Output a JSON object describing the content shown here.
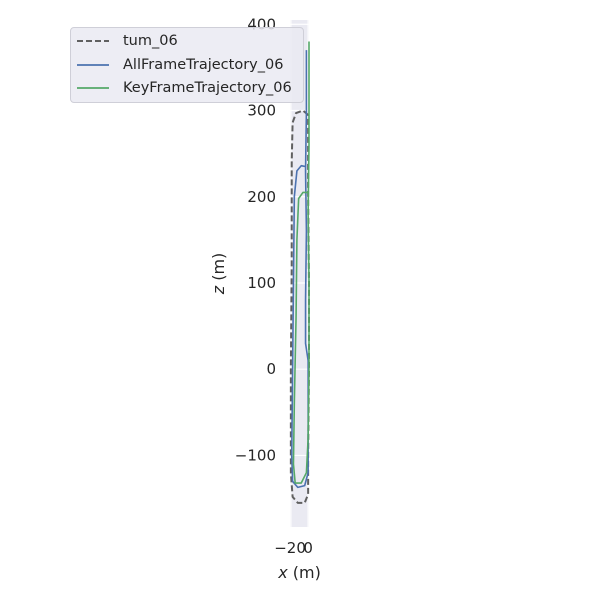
{
  "chart_data": {
    "type": "line",
    "title": "",
    "xlabel_var": "x",
    "xlabel_unit": " (m)",
    "ylabel_var": "z",
    "ylabel_unit": " (m)",
    "xlim": [
      -21,
      1
    ],
    "ylim": [
      -183,
      405
    ],
    "x_ticks": [
      -20,
      0
    ],
    "x_tick_labels": [
      "−20",
      "0"
    ],
    "y_ticks": [
      -100,
      0,
      100,
      200,
      300,
      400
    ],
    "y_tick_labels": [
      "−100",
      "0",
      "100",
      "200",
      "300",
      "400"
    ],
    "grid": true,
    "legend_position": "upper-left",
    "series": [
      {
        "name": "tum_06",
        "color": "#606060",
        "style": "dashed",
        "points": [
          [
            0,
            295
          ],
          [
            -6,
            300
          ],
          [
            -14,
            297
          ],
          [
            -18,
            286
          ],
          [
            -19,
            240
          ],
          [
            -19,
            120
          ],
          [
            -20,
            0
          ],
          [
            -20,
            -120
          ],
          [
            -18,
            -148
          ],
          [
            -12,
            -155
          ],
          [
            -4,
            -155
          ],
          [
            0,
            -145
          ],
          [
            0,
            -100
          ],
          [
            1,
            0
          ],
          [
            1,
            100
          ],
          [
            0,
            200
          ],
          [
            0,
            295
          ]
        ]
      },
      {
        "name": "AllFrameTrajectory_06",
        "color": "#4c72b0",
        "style": "solid",
        "points": [
          [
            -3,
            235
          ],
          [
            -8,
            236
          ],
          [
            -13,
            230
          ],
          [
            -16,
            200
          ],
          [
            -17,
            100
          ],
          [
            -18,
            0
          ],
          [
            -19,
            -100
          ],
          [
            -18,
            -130
          ],
          [
            -12,
            -137
          ],
          [
            -4,
            -135
          ],
          [
            0,
            -120
          ],
          [
            0,
            -60
          ],
          [
            0,
            10
          ],
          [
            -3,
            30
          ],
          [
            -3,
            80
          ],
          [
            -2,
            160
          ],
          [
            -3,
            230
          ],
          [
            -2,
            300
          ],
          [
            -2,
            370
          ]
        ]
      },
      {
        "name": "KeyFrameTrajectory_06",
        "color": "#55a868",
        "style": "solid",
        "points": [
          [
            0,
            205
          ],
          [
            -6,
            205
          ],
          [
            -11,
            198
          ],
          [
            -13,
            150
          ],
          [
            -14,
            60
          ],
          [
            -16,
            -40
          ],
          [
            -17,
            -110
          ],
          [
            -15,
            -132
          ],
          [
            -8,
            -132
          ],
          [
            -2,
            -120
          ],
          [
            0,
            -80
          ],
          [
            1,
            0
          ],
          [
            1,
            100
          ],
          [
            0,
            180
          ],
          [
            1,
            260
          ],
          [
            1,
            330
          ],
          [
            1,
            380
          ]
        ]
      }
    ]
  }
}
